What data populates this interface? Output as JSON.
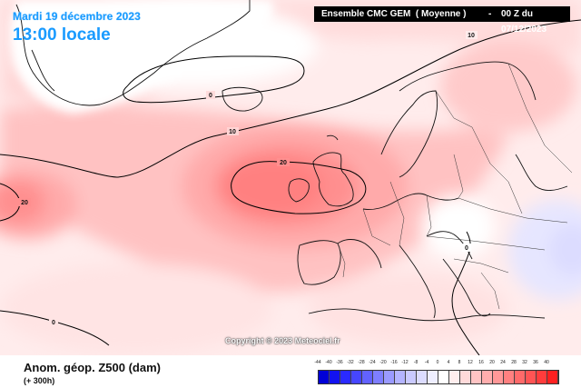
{
  "header": {
    "date": "Mardi 19 décembre 2023",
    "time": "13:00 locale",
    "model": "Ensemble CMC GEM",
    "variant": "( Moyenne )",
    "run": "00 Z du 07/12/2023"
  },
  "map": {
    "contour_labels": [
      "10",
      "0",
      "10",
      "20",
      "20",
      "0",
      "0"
    ],
    "copyright": "Copyright © 2023 Meteociel.fr"
  },
  "legend": {
    "title": "Anom. géop. Z500 (dam)",
    "lead": "(+ 300h)",
    "scale_values": [
      "-44",
      "-40",
      "-36",
      "-32",
      "-28",
      "-24",
      "-20",
      "-16",
      "-12",
      "-8",
      "-4",
      "0",
      "4",
      "8",
      "12",
      "16",
      "20",
      "24",
      "28",
      "32",
      "36",
      "40"
    ],
    "scale_colors": [
      "#0000d6",
      "#1212f0",
      "#2a2aff",
      "#4646ff",
      "#6262ff",
      "#7e7eff",
      "#9a9aff",
      "#b4b4ff",
      "#cacaff",
      "#dcdcff",
      "#eeeeff",
      "#ffffff",
      "#ffeeee",
      "#ffdada",
      "#ffc4c4",
      "#ffaeae",
      "#ff9898",
      "#ff8080",
      "#ff6a6a",
      "#ff5454",
      "#ff3c3c",
      "#ff2020"
    ]
  }
}
